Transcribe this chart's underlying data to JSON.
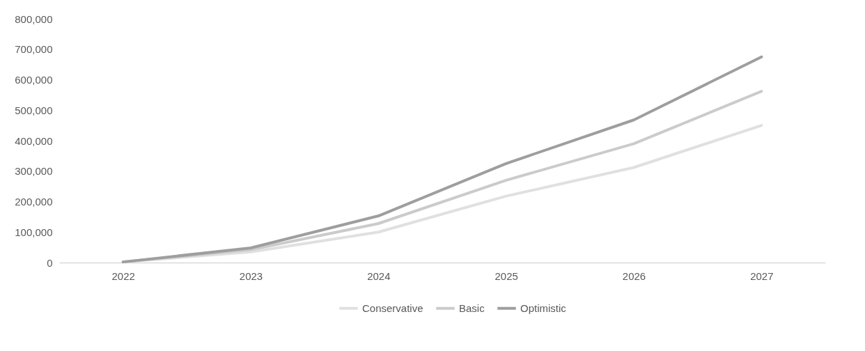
{
  "chart_data": {
    "type": "line",
    "categories": [
      "2022",
      "2023",
      "2024",
      "2025",
      "2026",
      "2027"
    ],
    "series": [
      {
        "name": "Conservative",
        "color": "#e0e0e0",
        "values": [
          2000,
          35000,
          100000,
          218000,
          312000,
          450000
        ]
      },
      {
        "name": "Basic",
        "color": "#cbcbcb",
        "values": [
          2000,
          42000,
          128000,
          270000,
          390000,
          562000
        ]
      },
      {
        "name": "Optimistic",
        "color": "#9e9e9e",
        "values": [
          2000,
          48000,
          153000,
          325000,
          468000,
          675000
        ]
      }
    ],
    "ylim": [
      0,
      800000
    ],
    "yticks": [
      {
        "value": 0,
        "label": "0"
      },
      {
        "value": 100000,
        "label": "100,000"
      },
      {
        "value": 200000,
        "label": "200,000"
      },
      {
        "value": 300000,
        "label": "300,000"
      },
      {
        "value": 400000,
        "label": "400,000"
      },
      {
        "value": 500000,
        "label": "500,000"
      },
      {
        "value": 600000,
        "label": "600,000"
      },
      {
        "value": 700000,
        "label": "700,000"
      },
      {
        "value": 800000,
        "label": "800,000"
      }
    ],
    "grid": false,
    "legend": "bottom",
    "marker": "none",
    "line_style": "solid"
  }
}
